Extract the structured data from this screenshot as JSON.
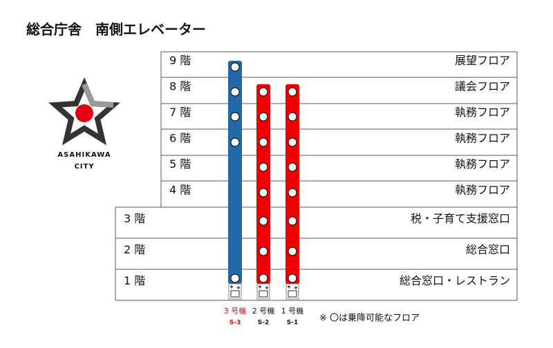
{
  "header": {
    "title": "総合庁舎　南側エレベーター"
  },
  "logo": {
    "line1": "ASAHIKAWA",
    "line2": "CITY"
  },
  "floors": [
    {
      "label": "9 階",
      "name": "展望フロア"
    },
    {
      "label": "8 階",
      "name": "議会フロア"
    },
    {
      "label": "7 階",
      "name": "執務フロア"
    },
    {
      "label": "6 階",
      "name": "執務フロア"
    },
    {
      "label": "5 階",
      "name": "執務フロア"
    },
    {
      "label": "4 階",
      "name": "執務フロア"
    },
    {
      "label": "3 階",
      "name": "税・子育て支援窓口"
    },
    {
      "label": "2 階",
      "name": "総合窓口"
    },
    {
      "label": "1 階",
      "name": "総合窓口・レストラン"
    }
  ],
  "elevators": [
    {
      "name": "3 号機",
      "code": "S-3"
    },
    {
      "name": "2 号機",
      "code": "S-2"
    },
    {
      "name": "1 号機",
      "code": "S-1"
    }
  ],
  "note": "※ 〇は乗降可能なフロア"
}
